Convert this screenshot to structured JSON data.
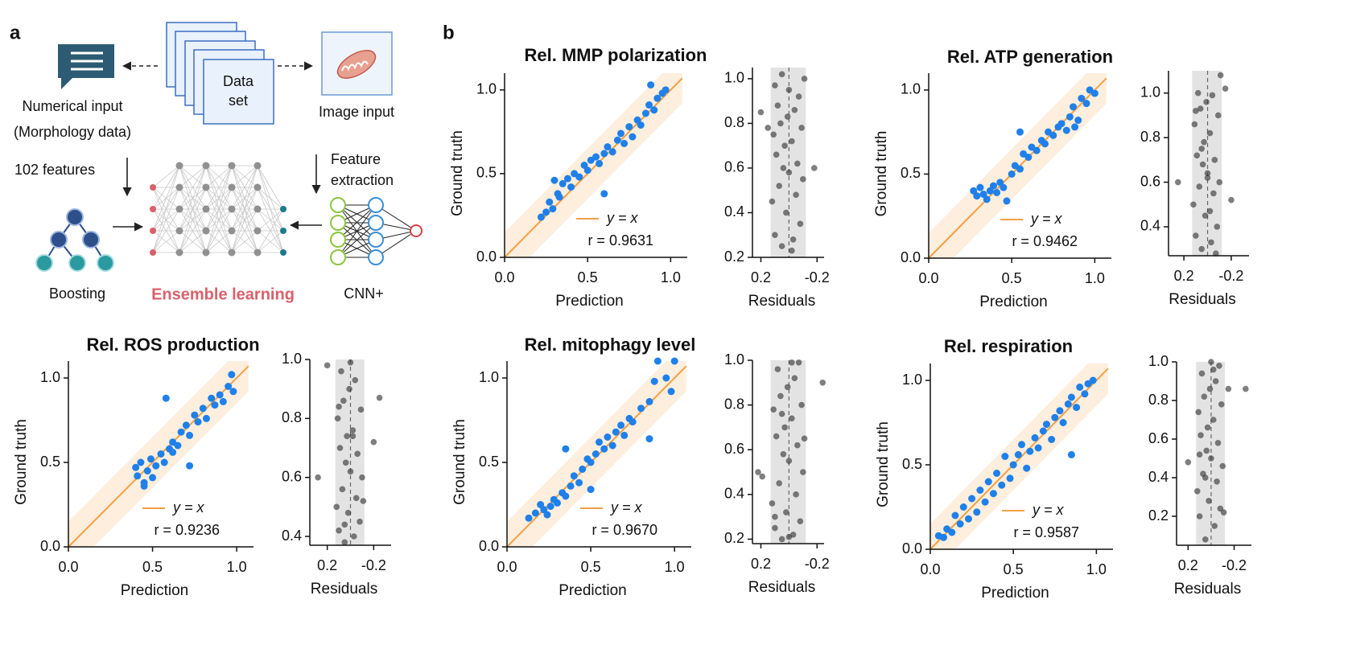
{
  "panel_labels": [
    "a",
    "b"
  ],
  "diagram": {
    "numerical_input": [
      "Numerical input",
      "(Morphology data)"
    ],
    "data_set": [
      "Data",
      "set"
    ],
    "image_input": "Image input",
    "features": "102 features",
    "feature_extraction": [
      "Feature",
      "extraction"
    ],
    "boosting": "Boosting",
    "ensemble": "Ensemble learning",
    "cnn": "CNN+"
  },
  "chart_data": [
    {
      "type": "scatter",
      "title": "Rel. MMP polarization",
      "xlabel": "Prediction",
      "ylabel": "Ground truth",
      "x": [
        0.22,
        0.25,
        0.27,
        0.29,
        0.3,
        0.32,
        0.35,
        0.38,
        0.4,
        0.42,
        0.45,
        0.48,
        0.5,
        0.52,
        0.55,
        0.57,
        0.6,
        0.62,
        0.65,
        0.68,
        0.7,
        0.72,
        0.75,
        0.77,
        0.8,
        0.82,
        0.85,
        0.87,
        0.9,
        0.92,
        0.95,
        0.97,
        0.6,
        0.33,
        0.88
      ],
      "y": [
        0.24,
        0.27,
        0.33,
        0.29,
        0.46,
        0.38,
        0.44,
        0.47,
        0.42,
        0.5,
        0.48,
        0.55,
        0.52,
        0.58,
        0.6,
        0.56,
        0.62,
        0.66,
        0.63,
        0.7,
        0.74,
        0.68,
        0.78,
        0.72,
        0.82,
        0.79,
        0.86,
        0.91,
        0.88,
        0.95,
        0.98,
        1.0,
        0.38,
        0.36,
        1.03
      ],
      "color": "#1f80ea",
      "xlim": [
        0,
        1.1
      ],
      "ylim": [
        0,
        1.1
      ],
      "xticks": [
        {
          "value": 0,
          "label": "0.0"
        },
        0.5,
        {
          "value": 1,
          "label": "1.0"
        }
      ],
      "yticks": [
        {
          "value": 0,
          "label": "0.0"
        },
        0.5,
        {
          "value": 1,
          "label": "1.0"
        }
      ],
      "line_label": "y = x",
      "line_color": "#f4a043",
      "band": 0.15,
      "band_color": "#fdeedd",
      "legend": "lower right",
      "annotation": "r = 0.9631",
      "residuals": {
        "type": "strip",
        "xlabel": "Residuals",
        "x": [
          0.05,
          -0.03,
          0.1,
          -0.08,
          0.02,
          0.12,
          -0.05,
          0.07,
          -0.1,
          0.0,
          0.04,
          -0.06,
          0.09,
          0.2,
          -0.18,
          0.03,
          -0.02,
          0.11,
          -0.09,
          0.06,
          0.01,
          -0.04,
          0.08,
          0.15,
          -0.07,
          0.0,
          0.1,
          -0.11,
          0.05,
          -0.02
        ],
        "y": [
          0.25,
          0.28,
          0.3,
          0.35,
          0.4,
          0.45,
          0.48,
          0.52,
          0.55,
          0.58,
          0.6,
          0.62,
          0.66,
          0.85,
          0.6,
          0.7,
          0.72,
          0.75,
          0.78,
          0.8,
          0.83,
          0.86,
          0.88,
          0.78,
          0.92,
          0.95,
          0.97,
          1.0,
          1.02,
          0.23
        ],
        "color": "#3a3a3a",
        "xlim": [
          0.26,
          -0.25
        ],
        "ylim": [
          0.2,
          1.05
        ],
        "xticks": [
          0.2,
          -0.2
        ],
        "yticks": [
          0.2,
          0.4,
          0.6,
          0.8,
          {
            "value": 1,
            "label": "1.0"
          }
        ],
        "band": [
          0.13,
          -0.12
        ],
        "band_color": "#e3e3e3"
      }
    },
    {
      "type": "scatter",
      "title": "Rel. ATP generation",
      "xlabel": "Prediction",
      "ylabel": "Ground truth",
      "x": [
        0.27,
        0.29,
        0.31,
        0.33,
        0.35,
        0.37,
        0.39,
        0.41,
        0.43,
        0.45,
        0.5,
        0.52,
        0.55,
        0.57,
        0.6,
        0.62,
        0.65,
        0.68,
        0.7,
        0.72,
        0.75,
        0.78,
        0.8,
        0.83,
        0.85,
        0.87,
        0.9,
        0.92,
        0.95,
        0.97,
        1.0,
        0.55,
        0.47,
        0.88
      ],
      "y": [
        0.4,
        0.37,
        0.42,
        0.38,
        0.35,
        0.4,
        0.43,
        0.39,
        0.45,
        0.42,
        0.5,
        0.55,
        0.53,
        0.62,
        0.6,
        0.66,
        0.64,
        0.7,
        0.68,
        0.75,
        0.73,
        0.78,
        0.8,
        0.76,
        0.84,
        0.9,
        0.82,
        0.95,
        0.92,
        1.0,
        0.98,
        0.75,
        0.34,
        0.78
      ],
      "color": "#1f80ea",
      "xlim": [
        0,
        1.1
      ],
      "ylim": [
        0,
        1.1
      ],
      "xticks": [
        {
          "value": 0,
          "label": "0.0"
        },
        0.5,
        {
          "value": 1,
          "label": "1.0"
        }
      ],
      "yticks": [
        {
          "value": 0,
          "label": "0.0"
        },
        0.5,
        {
          "value": 1,
          "label": "1.0"
        }
      ],
      "line_label": "y = x",
      "line_color": "#f4a043",
      "band": 0.15,
      "band_color": "#fdeedd",
      "legend": "lower right",
      "annotation": "r = 0.9462",
      "residuals": {
        "type": "strip",
        "xlabel": "Residuals",
        "x": [
          0.05,
          -0.03,
          0.1,
          -0.08,
          0.02,
          0.12,
          -0.05,
          0.07,
          -0.1,
          0.0,
          0.04,
          -0.06,
          0.09,
          0.25,
          -0.2,
          0.03,
          -0.02,
          0.11,
          -0.09,
          0.06,
          0.01,
          -0.04,
          0.08,
          -0.15,
          -0.07,
          0.0,
          0.1,
          -0.11,
          0.05,
          -0.02
        ],
        "y": [
          0.3,
          0.33,
          0.36,
          0.4,
          0.45,
          0.5,
          0.55,
          0.58,
          0.6,
          0.64,
          0.68,
          0.7,
          0.72,
          0.6,
          0.52,
          0.78,
          0.82,
          0.86,
          0.9,
          0.93,
          0.96,
          0.99,
          1.0,
          1.02,
          0.28,
          0.62,
          0.92,
          1.08,
          0.75,
          0.47
        ],
        "color": "#3a3a3a",
        "xlim": [
          0.33,
          -0.35
        ],
        "ylim": [
          0.27,
          1.1
        ],
        "xticks": [
          0.2,
          -0.2
        ],
        "yticks": [
          0.4,
          0.6,
          0.8,
          {
            "value": 1,
            "label": "1.0"
          }
        ],
        "band": [
          0.13,
          -0.12
        ],
        "band_color": "#e3e3e3"
      }
    },
    {
      "type": "scatter",
      "title": "Rel. ROS production",
      "xlabel": "Prediction",
      "ylabel": "Ground truth",
      "x": [
        0.4,
        0.41,
        0.43,
        0.45,
        0.47,
        0.49,
        0.5,
        0.52,
        0.55,
        0.57,
        0.6,
        0.62,
        0.65,
        0.67,
        0.7,
        0.72,
        0.75,
        0.77,
        0.8,
        0.82,
        0.85,
        0.87,
        0.9,
        0.92,
        0.95,
        0.97,
        0.98,
        0.58,
        0.72,
        0.45,
        0.62
      ],
      "y": [
        0.47,
        0.42,
        0.5,
        0.38,
        0.45,
        0.52,
        0.41,
        0.48,
        0.55,
        0.5,
        0.58,
        0.62,
        0.6,
        0.68,
        0.72,
        0.66,
        0.78,
        0.74,
        0.82,
        0.76,
        0.88,
        0.84,
        0.9,
        0.86,
        0.95,
        1.02,
        0.92,
        0.88,
        0.48,
        0.36,
        0.56
      ],
      "color": "#1f80ea",
      "xlim": [
        0,
        1.1
      ],
      "ylim": [
        0,
        1.1
      ],
      "xticks": [
        {
          "value": 0,
          "label": "0.0"
        },
        0.5,
        {
          "value": 1,
          "label": "1.0"
        }
      ],
      "yticks": [
        {
          "value": 0,
          "label": "0.0"
        },
        0.5,
        {
          "value": 1,
          "label": "1.0"
        }
      ],
      "line_label": "y = x",
      "line_color": "#f4a043",
      "band": 0.15,
      "band_color": "#fdeedd",
      "legend": "lower right",
      "annotation": "r = 0.9236",
      "residuals": {
        "type": "strip",
        "xlabel": "Residuals",
        "x": [
          0.05,
          -0.03,
          0.1,
          -0.08,
          0.02,
          0.12,
          -0.05,
          0.07,
          -0.1,
          0.0,
          0.04,
          -0.06,
          0.09,
          0.28,
          -0.25,
          0.03,
          -0.02,
          0.11,
          -0.09,
          0.06,
          0.01,
          -0.04,
          0.08,
          0.2,
          -0.2,
          0.0,
          0.1,
          -0.11,
          0.05,
          -0.02
        ],
        "y": [
          0.38,
          0.4,
          0.42,
          0.45,
          0.48,
          0.5,
          0.53,
          0.56,
          0.6,
          0.62,
          0.65,
          0.68,
          0.7,
          0.6,
          0.87,
          0.74,
          0.76,
          0.8,
          0.83,
          0.86,
          0.9,
          0.93,
          0.96,
          0.98,
          0.72,
          0.99,
          0.84,
          0.52,
          0.44,
          0.74
        ],
        "color": "#3a3a3a",
        "xlim": [
          0.35,
          -0.35
        ],
        "ylim": [
          0.37,
          1.0
        ],
        "xticks": [
          0.2,
          -0.2
        ],
        "yticks": [
          0.4,
          0.6,
          0.8,
          {
            "value": 1,
            "label": "1.0"
          }
        ],
        "band": [
          0.13,
          -0.12
        ],
        "band_color": "#e3e3e3"
      }
    },
    {
      "type": "scatter",
      "title": "Rel. mitophagy level",
      "xlabel": "Prediction",
      "ylabel": "Ground truth",
      "x": [
        0.13,
        0.17,
        0.2,
        0.22,
        0.24,
        0.26,
        0.28,
        0.3,
        0.33,
        0.35,
        0.38,
        0.4,
        0.43,
        0.45,
        0.48,
        0.5,
        0.53,
        0.55,
        0.58,
        0.6,
        0.63,
        0.65,
        0.68,
        0.7,
        0.73,
        0.75,
        0.8,
        0.85,
        0.88,
        0.9,
        0.95,
        0.98,
        1.0,
        0.35,
        0.5,
        0.85
      ],
      "y": [
        0.17,
        0.2,
        0.25,
        0.22,
        0.19,
        0.24,
        0.28,
        0.26,
        0.32,
        0.3,
        0.36,
        0.42,
        0.38,
        0.46,
        0.52,
        0.5,
        0.55,
        0.62,
        0.58,
        0.65,
        0.6,
        0.68,
        0.72,
        0.66,
        0.76,
        0.74,
        0.82,
        0.86,
        0.98,
        1.1,
        1.0,
        0.92,
        1.1,
        0.58,
        0.34,
        0.64
      ],
      "color": "#1f80ea",
      "xlim": [
        0,
        1.1
      ],
      "ylim": [
        0,
        1.1
      ],
      "xticks": [
        {
          "value": 0,
          "label": "0.0"
        },
        0.5,
        {
          "value": 1,
          "label": "1.0"
        }
      ],
      "yticks": [
        {
          "value": 0,
          "label": "0.0"
        },
        0.5,
        {
          "value": 1,
          "label": "1.0"
        }
      ],
      "line_label": "y = x",
      "line_color": "#f4a043",
      "band": 0.15,
      "band_color": "#fdeedd",
      "legend": "lower right",
      "annotation": "r = 0.9670",
      "residuals": {
        "type": "strip",
        "xlabel": "Residuals",
        "x": [
          0.05,
          -0.03,
          0.1,
          -0.08,
          0.02,
          0.12,
          -0.05,
          0.07,
          -0.1,
          0.0,
          0.04,
          -0.06,
          0.09,
          0.22,
          -0.24,
          0.03,
          -0.02,
          0.11,
          -0.09,
          0.06,
          0.01,
          -0.04,
          0.08,
          0.19,
          -0.07,
          0.0,
          0.1,
          -0.11,
          0.05,
          -0.02
        ],
        "y": [
          0.2,
          0.22,
          0.25,
          0.28,
          0.32,
          0.36,
          0.4,
          0.45,
          0.5,
          0.55,
          0.58,
          0.62,
          0.66,
          0.5,
          0.9,
          0.7,
          0.74,
          0.78,
          0.8,
          0.84,
          0.88,
          0.92,
          0.96,
          0.48,
          0.99,
          0.21,
          0.3,
          0.65,
          0.76,
          0.99
        ],
        "color": "#3a3a3a",
        "xlim": [
          0.26,
          -0.25
        ],
        "ylim": [
          0.18,
          1.0
        ],
        "xticks": [
          0.2,
          -0.2
        ],
        "yticks": [
          0.2,
          0.4,
          0.6,
          0.8,
          {
            "value": 1,
            "label": "1.0"
          }
        ],
        "band": [
          0.13,
          -0.12
        ],
        "band_color": "#e3e3e3"
      }
    },
    {
      "type": "scatter",
      "title": "Rel. respiration",
      "xlabel": "Prediction",
      "ylabel": "Ground truth",
      "x": [
        0.05,
        0.08,
        0.1,
        0.13,
        0.15,
        0.18,
        0.2,
        0.23,
        0.25,
        0.28,
        0.3,
        0.33,
        0.35,
        0.38,
        0.4,
        0.43,
        0.45,
        0.48,
        0.5,
        0.53,
        0.55,
        0.58,
        0.6,
        0.63,
        0.65,
        0.68,
        0.7,
        0.73,
        0.75,
        0.78,
        0.8,
        0.83,
        0.85,
        0.88,
        0.9,
        0.93,
        0.95,
        0.98,
        0.85
      ],
      "y": [
        0.08,
        0.07,
        0.12,
        0.1,
        0.2,
        0.15,
        0.25,
        0.18,
        0.3,
        0.22,
        0.35,
        0.28,
        0.4,
        0.33,
        0.45,
        0.38,
        0.55,
        0.42,
        0.5,
        0.56,
        0.62,
        0.48,
        0.58,
        0.66,
        0.6,
        0.7,
        0.74,
        0.65,
        0.78,
        0.82,
        0.75,
        0.86,
        0.9,
        0.84,
        0.96,
        0.92,
        0.98,
        1.0,
        0.56
      ],
      "color": "#1f80ea",
      "xlim": [
        0,
        1.1
      ],
      "ylim": [
        0,
        1.1
      ],
      "xticks": [
        {
          "value": 0,
          "label": "0.0"
        },
        0.5,
        {
          "value": 1,
          "label": "1.0"
        }
      ],
      "yticks": [
        {
          "value": 0,
          "label": "0.0"
        },
        0.5,
        {
          "value": 1,
          "label": "1.0"
        }
      ],
      "line_label": "y = x",
      "line_color": "#f4a043",
      "band": 0.15,
      "band_color": "#fdeedd",
      "legend": "lower right",
      "annotation": "r = 0.9587",
      "residuals": {
        "type": "strip",
        "xlabel": "Residuals",
        "x": [
          0.05,
          -0.03,
          0.1,
          -0.08,
          0.02,
          0.12,
          -0.05,
          0.07,
          -0.1,
          0.0,
          0.04,
          -0.06,
          0.09,
          0.2,
          -0.3,
          0.03,
          -0.02,
          0.11,
          -0.09,
          0.06,
          0.01,
          -0.04,
          0.08,
          -0.15,
          -0.07,
          0.0,
          0.1,
          -0.11,
          0.05,
          -0.02
        ],
        "y": [
          0.08,
          0.15,
          0.2,
          0.24,
          0.28,
          0.33,
          0.38,
          0.42,
          0.46,
          0.5,
          0.54,
          0.58,
          0.62,
          0.48,
          0.86,
          0.66,
          0.7,
          0.74,
          0.78,
          0.82,
          0.86,
          0.9,
          0.94,
          0.86,
          0.98,
          1.0,
          0.52,
          0.22,
          0.4,
          0.96
        ],
        "color": "#3a3a3a",
        "xlim": [
          0.3,
          -0.35
        ],
        "ylim": [
          0.05,
          1.0
        ],
        "xticks": [
          0.2,
          -0.2
        ],
        "yticks": [
          0.2,
          0.4,
          0.6,
          0.8,
          {
            "value": 1,
            "label": "1.0"
          }
        ],
        "band": [
          0.13,
          -0.12
        ],
        "band_color": "#e3e3e3"
      }
    }
  ]
}
